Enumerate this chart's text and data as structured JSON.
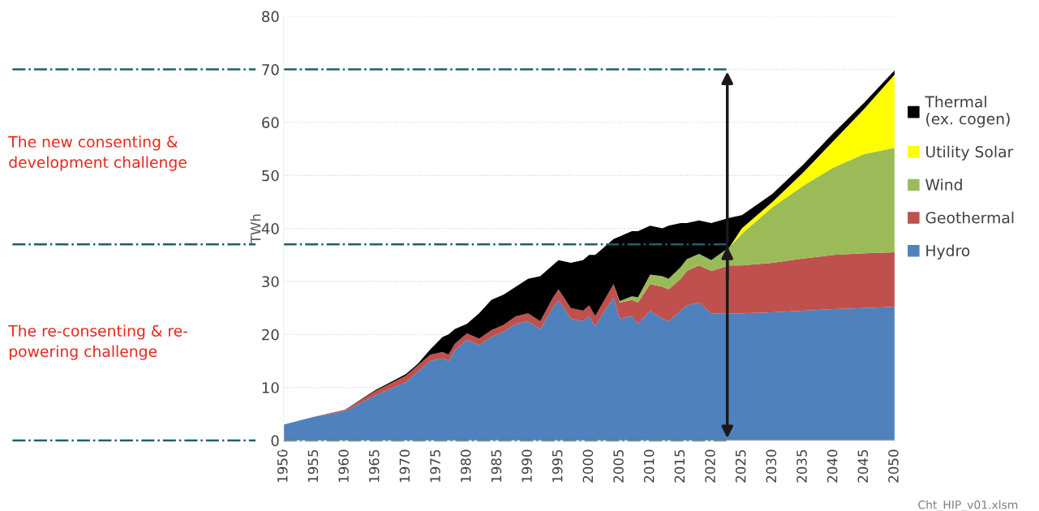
{
  "chart_data": {
    "type": "area",
    "stacked": true,
    "ylabel": "TWh",
    "x": [
      1950,
      1955,
      1960,
      1965,
      1970,
      1972,
      1974,
      1976,
      1977,
      1978,
      1980,
      1982,
      1984,
      1986,
      1988,
      1990,
      1992,
      1994,
      1995,
      1997,
      1999,
      2000,
      2001,
      2002,
      2004,
      2005,
      2007,
      2008,
      2010,
      2012,
      2013,
      2015,
      2016,
      2018,
      2020,
      2023,
      2025,
      2030,
      2035,
      2040,
      2045,
      2050
    ],
    "series": [
      {
        "name": "Hydro",
        "color": "#4f81bd",
        "values": [
          3,
          4.5,
          5.5,
          8.5,
          11,
          13,
          15,
          15.5,
          15,
          17,
          19,
          18,
          19.5,
          20.5,
          22,
          22.5,
          21,
          25,
          26.5,
          23,
          22.5,
          23.5,
          21.5,
          23.5,
          27,
          23,
          23.5,
          22,
          24.5,
          23,
          22.5,
          24.5,
          25.5,
          26,
          24,
          24,
          24,
          24.2,
          24.5,
          24.8,
          25,
          25.2
        ]
      },
      {
        "name": "Geothermal",
        "color": "#c0504d",
        "values": [
          0,
          0,
          0.3,
          0.8,
          1.2,
          1.2,
          1.2,
          1.2,
          1.2,
          1.2,
          1.2,
          1.2,
          1.3,
          1.3,
          1.4,
          1.5,
          1.5,
          1.8,
          2,
          2,
          2,
          2,
          2,
          2,
          2.5,
          3,
          3,
          4,
          5,
          6,
          6,
          6,
          6.5,
          7,
          8,
          9,
          9,
          9.3,
          9.8,
          10.2,
          10.3,
          10.3
        ]
      },
      {
        "name": "Wind",
        "color": "#9bbb59",
        "values": [
          0,
          0,
          0,
          0,
          0,
          0,
          0,
          0,
          0,
          0,
          0,
          0,
          0,
          0,
          0,
          0,
          0,
          0,
          0,
          0,
          0,
          0,
          0,
          0,
          0,
          0.3,
          0.7,
          1,
          1.8,
          2,
          2,
          2.2,
          2.2,
          2.2,
          2,
          3.5,
          6,
          10.5,
          13.7,
          16.5,
          18.7,
          19.7
        ]
      },
      {
        "name": "Utility Solar",
        "color": "#ffff00",
        "values": [
          0,
          0,
          0,
          0,
          0,
          0,
          0,
          0,
          0,
          0,
          0,
          0,
          0,
          0,
          0,
          0,
          0,
          0,
          0,
          0,
          0,
          0,
          0,
          0,
          0,
          0,
          0,
          0,
          0,
          0,
          0,
          0,
          0,
          0,
          0,
          0,
          1,
          1,
          2.5,
          5,
          8.5,
          13.8
        ]
      },
      {
        "name": "Thermal\n(ex. cogen)",
        "color": "#000000",
        "values": [
          0,
          0,
          0,
          0.2,
          0.3,
          0.3,
          1,
          2.8,
          3.8,
          2.8,
          1.8,
          4.8,
          5.7,
          5.7,
          5.6,
          6.5,
          8.5,
          6.2,
          5.5,
          8.5,
          9.5,
          9.5,
          11.5,
          10.5,
          8.5,
          12.2,
          12.3,
          12.5,
          9.2,
          9,
          10,
          8.3,
          6.8,
          6.3,
          7,
          5.5,
          2.5,
          1.5,
          1.5,
          1.5,
          1.2,
          0.8
        ]
      }
    ],
    "xlim": [
      1950,
      2050
    ],
    "xticks": [
      1950,
      1955,
      1960,
      1965,
      1970,
      1975,
      1980,
      1985,
      1990,
      1995,
      2000,
      2005,
      2010,
      2015,
      2020,
      2025,
      2030,
      2035,
      2040,
      2045,
      2050
    ],
    "ylim": [
      0,
      80
    ],
    "yticks": [
      0,
      10,
      20,
      30,
      40,
      50,
      60,
      70,
      80
    ],
    "grid": "y",
    "legend": "right",
    "ref_lines": [
      {
        "axis": "y",
        "value": 70,
        "color": "#1f5f6f",
        "line_style": "dashdot"
      },
      {
        "axis": "y",
        "value": 37,
        "color": "#1f5f6f",
        "line_style": "dashdot"
      },
      {
        "axis": "y",
        "value": 0,
        "color": "#1f5f6f",
        "line_style": "dashdot"
      }
    ],
    "annotations": [
      "The new consenting &\ndevelopment challenge",
      "The re-consenting & re-\npowering challenge",
      "Cht_HIP_v01.xlsm"
    ]
  }
}
